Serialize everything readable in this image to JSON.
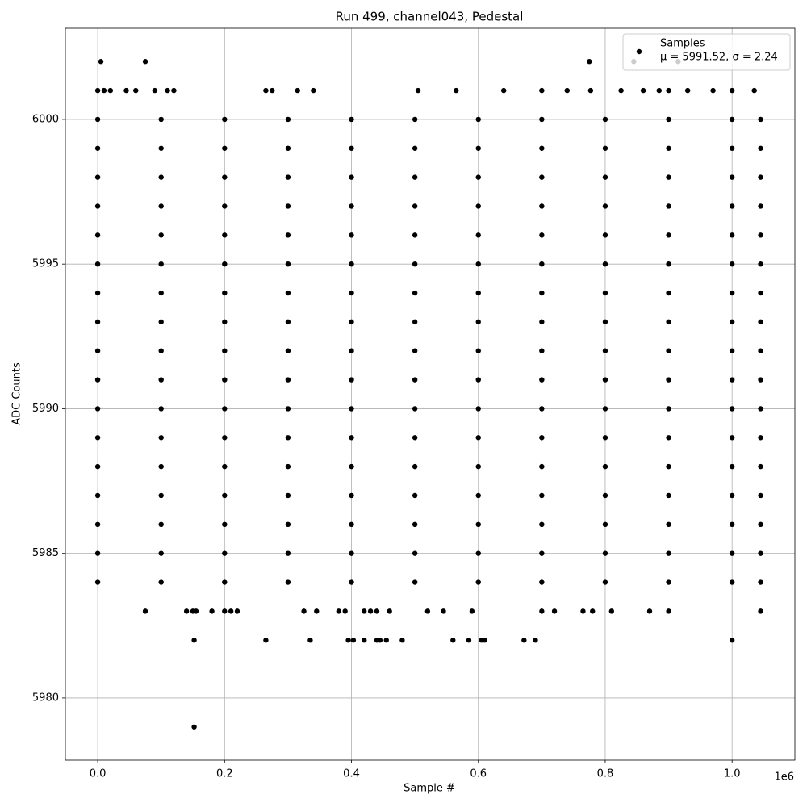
{
  "chart_data": {
    "type": "scatter",
    "title": "Run 499, channel043, Pedestal",
    "x_label": "Sample #",
    "y_label": "ADC Counts",
    "x_offset_label": "1e6",
    "annotation": "μ = 5991.52, σ = 2.24",
    "xlim": [
      -51000,
      1099000
    ],
    "ylim": [
      5977.85,
      6003.15
    ],
    "xticks": [
      {
        "value": 0,
        "label": "0.0"
      },
      {
        "value": 200000,
        "label": "0.2"
      },
      {
        "value": 400000,
        "label": "0.4"
      },
      {
        "value": 600000,
        "label": "0.6"
      },
      {
        "value": 800000,
        "label": "0.8"
      },
      {
        "value": 1000000,
        "label": "1.0"
      }
    ],
    "yticks": [
      5980,
      5985,
      5990,
      5995,
      6000
    ],
    "grid": true,
    "legend": "upper right",
    "series": [
      {
        "name": "Samples",
        "color": "#000000",
        "x": [
          0,
          100000,
          200000,
          300000,
          400000,
          500000,
          600000,
          700000,
          800000,
          900000,
          1000000,
          1045000,
          0,
          100000,
          200000,
          300000,
          400000,
          500000,
          600000,
          700000,
          800000,
          900000,
          1000000,
          1045000,
          0,
          100000,
          200000,
          300000,
          400000,
          500000,
          600000,
          700000,
          800000,
          900000,
          1000000,
          1045000,
          0,
          100000,
          200000,
          300000,
          400000,
          500000,
          600000,
          700000,
          800000,
          900000,
          1000000,
          1045000,
          0,
          100000,
          200000,
          300000,
          400000,
          500000,
          600000,
          700000,
          800000,
          900000,
          1000000,
          1045000,
          0,
          100000,
          200000,
          300000,
          400000,
          500000,
          600000,
          700000,
          800000,
          900000,
          1000000,
          1045000,
          0,
          100000,
          200000,
          300000,
          400000,
          500000,
          600000,
          700000,
          800000,
          900000,
          1000000,
          1045000,
          0,
          100000,
          200000,
          300000,
          400000,
          500000,
          600000,
          700000,
          800000,
          900000,
          1000000,
          1045000,
          0,
          100000,
          200000,
          300000,
          400000,
          500000,
          600000,
          700000,
          800000,
          900000,
          1000000,
          1045000,
          0,
          100000,
          200000,
          300000,
          400000,
          500000,
          600000,
          700000,
          800000,
          900000,
          1000000,
          1045000,
          0,
          100000,
          200000,
          300000,
          400000,
          500000,
          600000,
          700000,
          800000,
          900000,
          1000000,
          1045000,
          0,
          100000,
          200000,
          300000,
          400000,
          500000,
          600000,
          700000,
          800000,
          900000,
          1000000,
          1045000,
          0,
          100000,
          200000,
          300000,
          400000,
          500000,
          600000,
          700000,
          800000,
          900000,
          1000000,
          1045000,
          0,
          100000,
          200000,
          300000,
          400000,
          500000,
          600000,
          700000,
          800000,
          900000,
          1000000,
          1045000,
          0,
          100000,
          200000,
          300000,
          400000,
          500000,
          600000,
          700000,
          800000,
          900000,
          1000000,
          1045000,
          0,
          100000,
          200000,
          300000,
          400000,
          500000,
          600000,
          700000,
          800000,
          900000,
          1000000,
          1045000,
          0,
          100000,
          200000,
          300000,
          400000,
          500000,
          600000,
          700000,
          800000,
          900000,
          1000000,
          1045000,
          152000,
          152000,
          265000,
          335000,
          395000,
          403000,
          420000,
          440000,
          445000,
          455000,
          480000,
          560000,
          585000,
          605000,
          610000,
          672000,
          690000,
          1000000,
          75000,
          140000,
          150000,
          155000,
          180000,
          200000,
          210000,
          220000,
          325000,
          345000,
          380000,
          390000,
          420000,
          430000,
          440000,
          460000,
          520000,
          545000,
          590000,
          700000,
          720000,
          765000,
          780000,
          810000,
          870000,
          900000,
          1045000,
          0,
          10000,
          20000,
          45000,
          60000,
          90000,
          110000,
          120000,
          265000,
          275000,
          315000,
          340000,
          505000,
          565000,
          640000,
          700000,
          740000,
          777000,
          825000,
          860000,
          885000,
          900000,
          930000,
          970000,
          1000000,
          1035000,
          5000,
          75000,
          775000,
          845000,
          915000
        ],
        "values": [
          5984,
          5984,
          5984,
          5984,
          5984,
          5984,
          5984,
          5984,
          5984,
          5984,
          5984,
          5984,
          5985,
          5985,
          5985,
          5985,
          5985,
          5985,
          5985,
          5985,
          5985,
          5985,
          5985,
          5985,
          5986,
          5986,
          5986,
          5986,
          5986,
          5986,
          5986,
          5986,
          5986,
          5986,
          5986,
          5986,
          5987,
          5987,
          5987,
          5987,
          5987,
          5987,
          5987,
          5987,
          5987,
          5987,
          5987,
          5987,
          5988,
          5988,
          5988,
          5988,
          5988,
          5988,
          5988,
          5988,
          5988,
          5988,
          5988,
          5988,
          5989,
          5989,
          5989,
          5989,
          5989,
          5989,
          5989,
          5989,
          5989,
          5989,
          5989,
          5989,
          5990,
          5990,
          5990,
          5990,
          5990,
          5990,
          5990,
          5990,
          5990,
          5990,
          5990,
          5990,
          5991,
          5991,
          5991,
          5991,
          5991,
          5991,
          5991,
          5991,
          5991,
          5991,
          5991,
          5991,
          5992,
          5992,
          5992,
          5992,
          5992,
          5992,
          5992,
          5992,
          5992,
          5992,
          5992,
          5992,
          5993,
          5993,
          5993,
          5993,
          5993,
          5993,
          5993,
          5993,
          5993,
          5993,
          5993,
          5993,
          5994,
          5994,
          5994,
          5994,
          5994,
          5994,
          5994,
          5994,
          5994,
          5994,
          5994,
          5994,
          5995,
          5995,
          5995,
          5995,
          5995,
          5995,
          5995,
          5995,
          5995,
          5995,
          5995,
          5995,
          5996,
          5996,
          5996,
          5996,
          5996,
          5996,
          5996,
          5996,
          5996,
          5996,
          5996,
          5996,
          5997,
          5997,
          5997,
          5997,
          5997,
          5997,
          5997,
          5997,
          5997,
          5997,
          5997,
          5997,
          5998,
          5998,
          5998,
          5998,
          5998,
          5998,
          5998,
          5998,
          5998,
          5998,
          5998,
          5998,
          5999,
          5999,
          5999,
          5999,
          5999,
          5999,
          5999,
          5999,
          5999,
          5999,
          5999,
          5999,
          6000,
          6000,
          6000,
          6000,
          6000,
          6000,
          6000,
          6000,
          6000,
          6000,
          6000,
          6000,
          5979,
          5982,
          5982,
          5982,
          5982,
          5982,
          5982,
          5982,
          5982,
          5982,
          5982,
          5982,
          5982,
          5982,
          5982,
          5982,
          5982,
          5982,
          5983,
          5983,
          5983,
          5983,
          5983,
          5983,
          5983,
          5983,
          5983,
          5983,
          5983,
          5983,
          5983,
          5983,
          5983,
          5983,
          5983,
          5983,
          5983,
          5983,
          5983,
          5983,
          5983,
          5983,
          5983,
          5983,
          5983,
          6001,
          6001,
          6001,
          6001,
          6001,
          6001,
          6001,
          6001,
          6001,
          6001,
          6001,
          6001,
          6001,
          6001,
          6001,
          6001,
          6001,
          6001,
          6001,
          6001,
          6001,
          6001,
          6001,
          6001,
          6001,
          6001,
          6002,
          6002,
          6002,
          6002,
          6002
        ]
      }
    ]
  }
}
